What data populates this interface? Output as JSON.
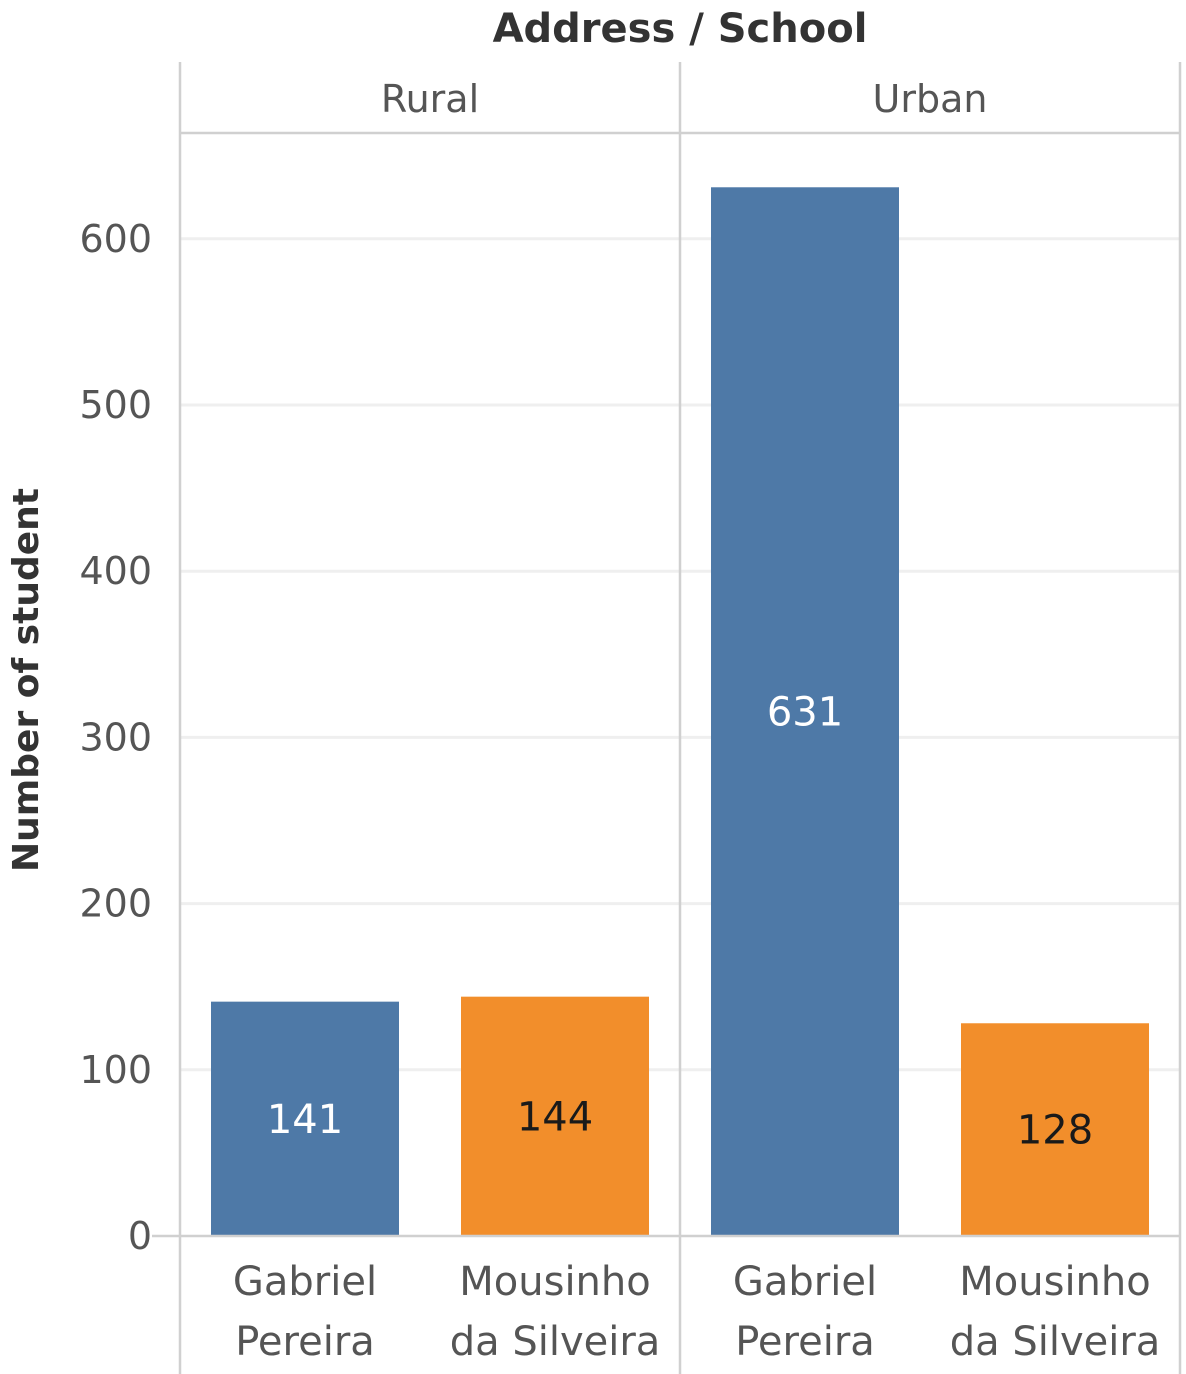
{
  "chart_data": {
    "type": "bar",
    "title": "Address / School",
    "ylabel": "Number of student",
    "ylim": [
      0,
      660
    ],
    "yticks": [
      0,
      100,
      200,
      300,
      400,
      500,
      600
    ],
    "grid": true,
    "panels": [
      {
        "label": "Rural",
        "categories": [
          [
            "Gabriel",
            "Pereira"
          ],
          [
            "Mousinho",
            "da Silveira"
          ]
        ],
        "values": [
          141,
          144
        ],
        "colors": [
          "#4e79a7",
          "#f28e2b"
        ]
      },
      {
        "label": "Urban",
        "categories": [
          [
            "Gabriel",
            "Pereira"
          ],
          [
            "Mousinho",
            "da Silveira"
          ]
        ],
        "values": [
          631,
          128
        ],
        "colors": [
          "#4e79a7",
          "#f28e2b"
        ]
      }
    ],
    "label_colors": {
      "#4e79a7": "#ffffff",
      "#f28e2b": "#1a1a1a"
    }
  }
}
